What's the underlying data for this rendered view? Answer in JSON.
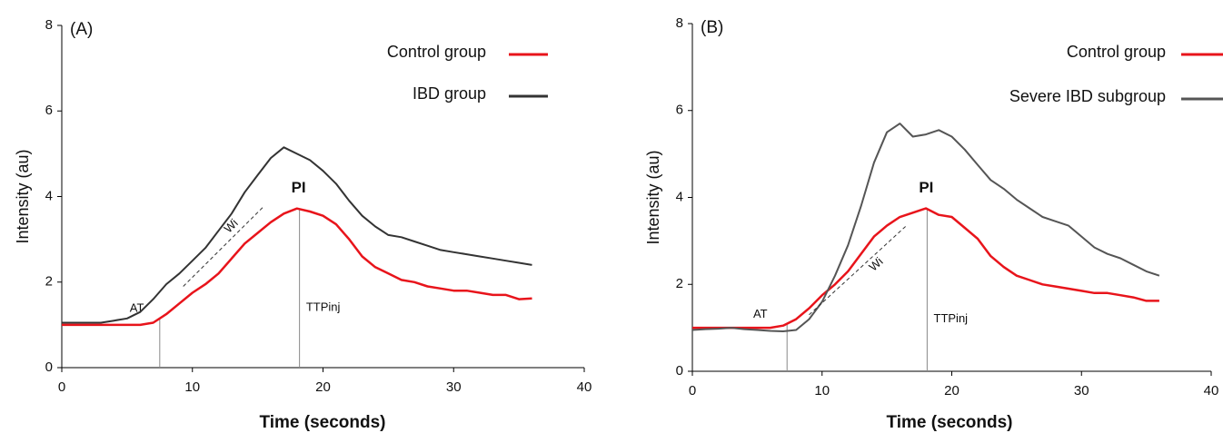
{
  "chart_data": [
    {
      "type": "line",
      "panel_label": "(A)",
      "xlabel": "Time (seconds)",
      "ylabel": "Intensity (au)",
      "x": [
        0,
        1,
        2,
        3,
        4,
        5,
        6,
        7,
        8,
        9,
        10,
        11,
        12,
        13,
        14,
        15,
        16,
        17,
        18,
        19,
        20,
        21,
        22,
        23,
        24,
        25,
        26,
        27,
        28,
        29,
        30,
        31,
        32,
        33,
        34,
        35,
        36
      ],
      "series": [
        {
          "name": "Control group",
          "color": "#e8141b",
          "values": [
            1.0,
            1.0,
            1.0,
            1.0,
            1.0,
            1.0,
            1.0,
            1.05,
            1.25,
            1.5,
            1.75,
            1.95,
            2.2,
            2.55,
            2.9,
            3.15,
            3.4,
            3.6,
            3.72,
            3.65,
            3.55,
            3.35,
            3.0,
            2.6,
            2.35,
            2.2,
            2.05,
            2.0,
            1.9,
            1.85,
            1.8,
            1.8,
            1.75,
            1.7,
            1.7,
            1.6,
            1.62
          ]
        },
        {
          "name": "IBD group",
          "color": "#333333",
          "values": [
            1.05,
            1.05,
            1.05,
            1.05,
            1.1,
            1.15,
            1.3,
            1.6,
            1.95,
            2.2,
            2.5,
            2.8,
            3.2,
            3.6,
            4.1,
            4.5,
            4.9,
            5.15,
            5.0,
            4.85,
            4.6,
            4.3,
            3.9,
            3.55,
            3.3,
            3.1,
            3.05,
            2.95,
            2.85,
            2.75,
            2.7,
            2.65,
            2.6,
            2.55,
            2.5,
            2.45,
            2.4
          ]
        }
      ],
      "markers": [
        {
          "label": "AT",
          "x": 7.5
        },
        {
          "label": "TTPinj",
          "x": 18.2
        }
      ],
      "peak_label": "PI",
      "slope_label": "Wi",
      "xlim": [
        0,
        40
      ],
      "xticks": [
        0,
        10,
        20,
        30,
        40
      ],
      "ylim": [
        0,
        8
      ],
      "yticks": [
        0,
        2,
        4,
        6,
        8
      ],
      "grid": false,
      "legend": "upper right"
    },
    {
      "type": "line",
      "panel_label": "(B)",
      "xlabel": "Time (seconds)",
      "ylabel": "Intensity (au)",
      "x": [
        0,
        1,
        2,
        3,
        4,
        5,
        6,
        7,
        8,
        9,
        10,
        11,
        12,
        13,
        14,
        15,
        16,
        17,
        18,
        19,
        20,
        21,
        22,
        23,
        24,
        25,
        26,
        27,
        28,
        29,
        30,
        31,
        32,
        33,
        34,
        35,
        36
      ],
      "series": [
        {
          "name": "Control group",
          "color": "#e8141b",
          "values": [
            1.0,
            1.0,
            1.0,
            1.0,
            1.0,
            1.0,
            1.0,
            1.05,
            1.2,
            1.45,
            1.75,
            2.0,
            2.3,
            2.7,
            3.1,
            3.35,
            3.55,
            3.65,
            3.75,
            3.6,
            3.55,
            3.3,
            3.05,
            2.65,
            2.4,
            2.2,
            2.1,
            2.0,
            1.95,
            1.9,
            1.85,
            1.8,
            1.8,
            1.75,
            1.7,
            1.62,
            1.62
          ]
        },
        {
          "name": "Severe IBD subgroup",
          "color": "#555555",
          "values": [
            0.95,
            0.97,
            0.98,
            1.0,
            0.97,
            0.95,
            0.93,
            0.92,
            0.95,
            1.2,
            1.6,
            2.2,
            2.9,
            3.8,
            4.8,
            5.5,
            5.7,
            5.4,
            5.45,
            5.55,
            5.4,
            5.1,
            4.75,
            4.4,
            4.2,
            3.95,
            3.75,
            3.55,
            3.45,
            3.35,
            3.1,
            2.85,
            2.7,
            2.6,
            2.45,
            2.3,
            2.2
          ]
        }
      ],
      "markers": [
        {
          "label": "AT",
          "x": 7.3
        },
        {
          "label": "TTPinj",
          "x": 18.1
        }
      ],
      "peak_label": "PI",
      "slope_label": "Wi",
      "xlim": [
        0,
        40
      ],
      "xticks": [
        0,
        10,
        20,
        30,
        40
      ],
      "ylim": [
        0,
        8
      ],
      "yticks": [
        0,
        2,
        4,
        6,
        8
      ],
      "grid": false,
      "legend": "upper right"
    }
  ]
}
